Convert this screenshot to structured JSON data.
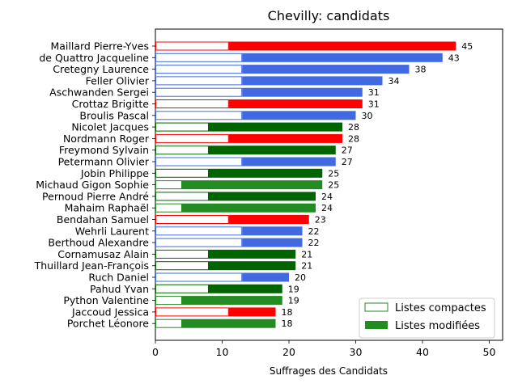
{
  "chart_data": {
    "type": "bar",
    "orientation": "horizontal",
    "title": "Chevilly: candidats",
    "xlabel": "Suffrages des Candidats",
    "ylabel": "",
    "xlim": [
      0,
      52
    ],
    "xticks": [
      "0",
      "10",
      "20",
      "30",
      "40",
      "50"
    ],
    "grid": false,
    "legend_position": "bottom-right",
    "legend": [
      {
        "label": "Listes compactes",
        "style": "outline",
        "color": "#228b22"
      },
      {
        "label": "Listes modifiées",
        "style": "filled",
        "color": "#228b22"
      }
    ],
    "candidates": [
      {
        "name": "Maillard Pierre-Yves",
        "total": 45,
        "compact": 11,
        "color": "#ff0000"
      },
      {
        "name": "de Quattro Jacqueline",
        "total": 43,
        "compact": 13,
        "color": "#4169e1"
      },
      {
        "name": "Cretegny Laurence",
        "total": 38,
        "compact": 13,
        "color": "#4169e1"
      },
      {
        "name": "Feller Olivier",
        "total": 34,
        "compact": 13,
        "color": "#4169e1"
      },
      {
        "name": "Aschwanden Sergei",
        "total": 31,
        "compact": 13,
        "color": "#4169e1"
      },
      {
        "name": "Crottaz Brigitte",
        "total": 31,
        "compact": 11,
        "color": "#ff0000"
      },
      {
        "name": "Broulis Pascal",
        "total": 30,
        "compact": 13,
        "color": "#4169e1"
      },
      {
        "name": "Nicolet Jacques",
        "total": 28,
        "compact": 8,
        "color": "#006400"
      },
      {
        "name": "Nordmann Roger",
        "total": 28,
        "compact": 11,
        "color": "#ff0000"
      },
      {
        "name": "Freymond Sylvain",
        "total": 27,
        "compact": 8,
        "color": "#006400"
      },
      {
        "name": "Petermann Olivier",
        "total": 27,
        "compact": 13,
        "color": "#4169e1"
      },
      {
        "name": "Jobin Philippe",
        "total": 25,
        "compact": 8,
        "color": "#006400"
      },
      {
        "name": "Michaud Gigon Sophie",
        "total": 25,
        "compact": 4,
        "color": "#228b22"
      },
      {
        "name": "Pernoud Pierre André",
        "total": 24,
        "compact": 8,
        "color": "#006400"
      },
      {
        "name": "Mahaim Raphaël",
        "total": 24,
        "compact": 4,
        "color": "#228b22"
      },
      {
        "name": "Bendahan Samuel",
        "total": 23,
        "compact": 11,
        "color": "#ff0000"
      },
      {
        "name": "Wehrli Laurent",
        "total": 22,
        "compact": 13,
        "color": "#4169e1"
      },
      {
        "name": "Berthoud Alexandre",
        "total": 22,
        "compact": 13,
        "color": "#4169e1"
      },
      {
        "name": "Cornamusaz Alain",
        "total": 21,
        "compact": 8,
        "color": "#006400"
      },
      {
        "name": "Thuillard Jean-François",
        "total": 21,
        "compact": 8,
        "color": "#006400"
      },
      {
        "name": "Ruch Daniel",
        "total": 20,
        "compact": 13,
        "color": "#4169e1"
      },
      {
        "name": "Pahud Yvan",
        "total": 19,
        "compact": 8,
        "color": "#006400"
      },
      {
        "name": "Python Valentine",
        "total": 19,
        "compact": 4,
        "color": "#228b22"
      },
      {
        "name": "Jaccoud Jessica",
        "total": 18,
        "compact": 11,
        "color": "#ff0000"
      },
      {
        "name": "Porchet Léonore",
        "total": 18,
        "compact": 4,
        "color": "#228b22"
      }
    ]
  }
}
